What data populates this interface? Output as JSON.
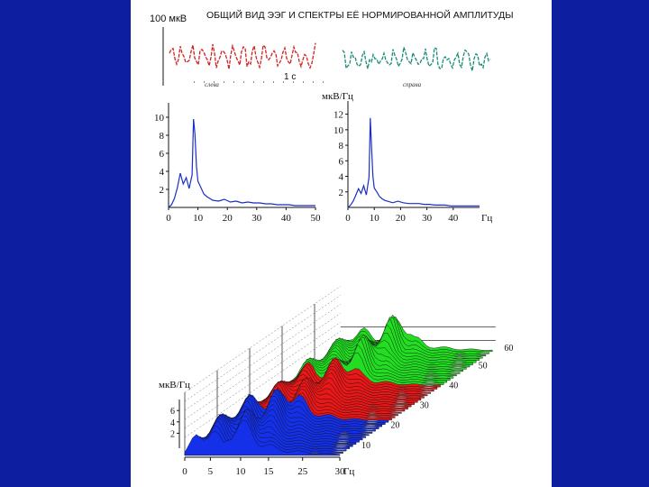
{
  "header": {
    "title": "ОБЩИЙ ВИД ЭЭГ И СПЕКТРЫ ЕЁ НОРМИРОВАННОЙ АМПЛИТУДЫ",
    "scale_label": "100 мкВ",
    "time_label": "1 с",
    "trace_left_label": "слева",
    "trace_right_label": "справа"
  },
  "colors": {
    "background": "#0d1f9e",
    "left_trace": "#d42020",
    "right_trace": "#1a8a7a",
    "spectrum_line": "#1a2fc8",
    "band_blue": "#1430e8",
    "band_red": "#e81818",
    "band_green": "#22dd22"
  },
  "chart_data": [
    {
      "type": "line",
      "ylabel": "",
      "xlabel": "",
      "x_ticks": [
        "0",
        "10",
        "20",
        "30",
        "40",
        "50"
      ],
      "y_ticks": [
        "2",
        "4",
        "6",
        "8",
        "10"
      ],
      "xlim": [
        0,
        50
      ],
      "ylim": [
        0,
        11
      ],
      "x": [
        0,
        1,
        2,
        3,
        4,
        5,
        6,
        7,
        8,
        8.5,
        9,
        9.5,
        10,
        11,
        12,
        13,
        14,
        15,
        17,
        19,
        21,
        23,
        25,
        27,
        29,
        31,
        33,
        35,
        37,
        39,
        41,
        43,
        45,
        47,
        50
      ],
      "values": [
        0,
        0.3,
        1,
        2.2,
        3.8,
        2.6,
        3.3,
        2.1,
        3.6,
        9.8,
        8.1,
        4.5,
        2.9,
        2.2,
        1.5,
        1.2,
        1.0,
        0.8,
        0.7,
        0.9,
        0.6,
        0.7,
        0.5,
        0.6,
        0.5,
        0.5,
        0.4,
        0.4,
        0.3,
        0.3,
        0.3,
        0.2,
        0.2,
        0.2,
        0.2
      ]
    },
    {
      "type": "line",
      "ylabel": "мкВ/Гц",
      "xlabel": "Гц",
      "x_ticks": [
        "0",
        "10",
        "20",
        "30",
        "40"
      ],
      "y_ticks": [
        "2",
        "4",
        "6",
        "8",
        "10",
        "12"
      ],
      "xlim": [
        0,
        50
      ],
      "ylim": [
        0,
        13
      ],
      "x": [
        0,
        1,
        2,
        3,
        4,
        5,
        6,
        7,
        8,
        8.5,
        9,
        9.5,
        10,
        11,
        12,
        13,
        14,
        15,
        17,
        19,
        21,
        23,
        25,
        27,
        29,
        31,
        33,
        35,
        37,
        39,
        41,
        43,
        45,
        47,
        50
      ],
      "values": [
        0,
        0.3,
        0.8,
        1.6,
        2.4,
        1.8,
        2.8,
        1.6,
        3.9,
        11.5,
        7.5,
        4.0,
        2.5,
        2.0,
        1.4,
        1.1,
        0.9,
        0.8,
        0.6,
        0.8,
        0.6,
        0.5,
        0.5,
        0.5,
        0.4,
        0.4,
        0.3,
        0.3,
        0.3,
        0.2,
        0.2,
        0.2,
        0.2,
        0.2,
        0.2
      ]
    },
    {
      "type": "area",
      "ylabel": "мкВ/Гц",
      "xlabel": "Гц",
      "x_ticks": [
        "0",
        "5",
        "10",
        "15",
        "25",
        "30"
      ],
      "y_ticks": [
        "2",
        "4",
        "6"
      ],
      "depth_ticks": [
        "10",
        "20",
        "30",
        "40",
        "50",
        "60"
      ],
      "series": [
        {
          "color": "blue",
          "values": [
            0.5,
            3.5,
            4.2,
            2.0,
            5.5,
            4.2,
            2.0,
            1.2,
            0.8,
            0.6,
            0.4,
            0.3,
            0.3
          ]
        },
        {
          "color": "red",
          "values": [
            0.5,
            2.5,
            3.5,
            2.0,
            4.2,
            3.8,
            1.8,
            1.0,
            0.7,
            0.5,
            0.4,
            0.3,
            0.3
          ]
        },
        {
          "color": "green",
          "values": [
            0.5,
            3.0,
            3.2,
            2.5,
            4.0,
            5.8,
            2.2,
            1.0,
            0.7,
            0.5,
            0.4,
            0.3,
            0.3
          ]
        }
      ]
    }
  ]
}
